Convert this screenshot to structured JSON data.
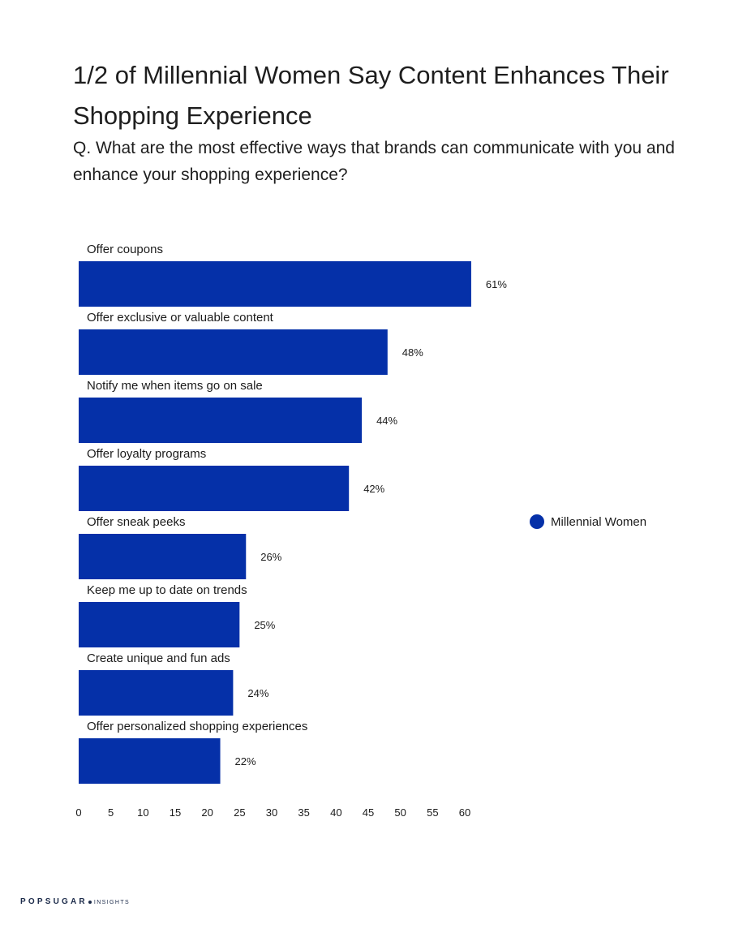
{
  "page": {
    "title": "1/2 of Millennial Women Say Content Enhances Their Shopping Experience",
    "subtitle": "Q. What are the most effective ways that brands can communicate with you and enhance your shopping experience?",
    "brand": "POPSUGAR",
    "brand_sub": "INSIGHTS"
  },
  "chart_data": {
    "type": "bar",
    "orientation": "horizontal",
    "categories": [
      "Offer coupons",
      "Offer exclusive or valuable content",
      "Notify me when items go on sale",
      "Offer loyalty programs",
      "Offer sneak peeks",
      "Keep me up to date on trends",
      "Create unique and fun ads",
      "Offer personalized shopping experiences"
    ],
    "series": [
      {
        "name": "Millennial Women",
        "values": [
          61,
          48,
          44,
          42,
          26,
          25,
          24,
          22
        ],
        "data_labels": [
          "61%",
          "48%",
          "44%",
          "42%",
          "26%",
          "25%",
          "24%",
          "22%"
        ]
      }
    ],
    "xlim": [
      0,
      60
    ],
    "xticks": [
      0,
      5,
      10,
      15,
      20,
      25,
      30,
      35,
      40,
      45,
      50,
      55,
      60
    ],
    "grid": false,
    "legend_position": "right",
    "colors": {
      "bar": "#0530a8",
      "legend_marker": "#0530a8",
      "text": "#1b1b1b"
    }
  }
}
